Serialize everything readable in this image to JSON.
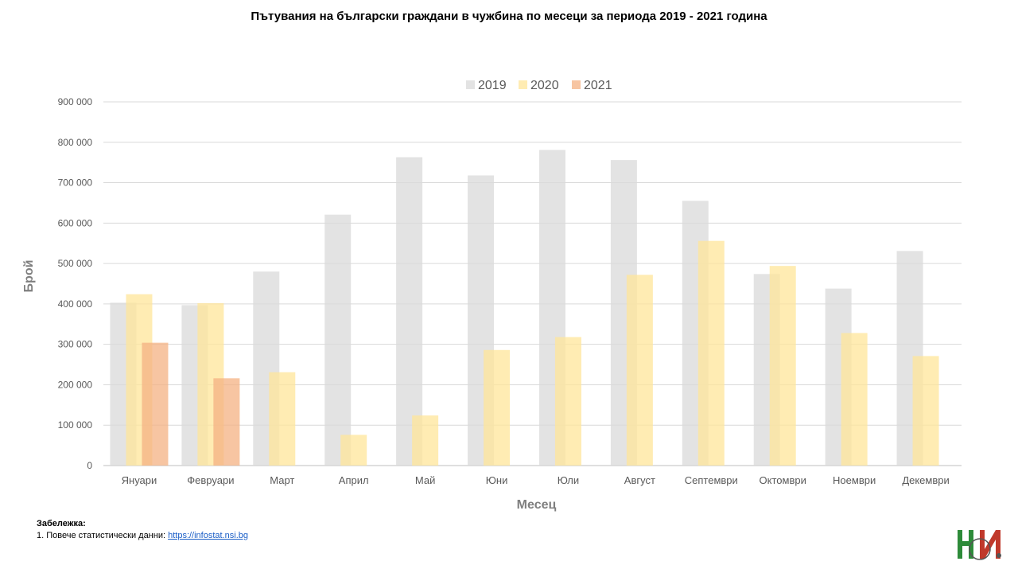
{
  "chart_data": {
    "type": "bar",
    "title": "Пътувания на български граждани в чужбина по месеци за периода 2019 - 2021 година",
    "xlabel": "Месец",
    "ylabel": "Брой",
    "ylim": [
      0,
      900000
    ],
    "yticks": [
      0,
      100000,
      200000,
      300000,
      400000,
      500000,
      600000,
      700000,
      800000,
      900000
    ],
    "ytick_labels": [
      "0",
      "100 000",
      "200 000",
      "300 000",
      "400 000",
      "500 000",
      "600 000",
      "700 000",
      "800 000",
      "900 000"
    ],
    "grid": true,
    "legend_position": "top-center",
    "categories": [
      "Януари",
      "Февруари",
      "Март",
      "Април",
      "Май",
      "Юни",
      "Юли",
      "Август",
      "Септември",
      "Октомври",
      "Ноември",
      "Декември"
    ],
    "series": [
      {
        "name": "2019",
        "color": "#d9d9d9",
        "values": [
          403000,
          397000,
          480000,
          621000,
          763000,
          718000,
          781000,
          756000,
          655000,
          474000,
          438000,
          531000
        ]
      },
      {
        "name": "2020",
        "color": "#ffe699",
        "values": [
          424000,
          402000,
          231000,
          76000,
          124000,
          286000,
          318000,
          472000,
          556000,
          494000,
          328000,
          271000
        ]
      },
      {
        "name": "2021",
        "color": "#f4b183",
        "values": [
          304000,
          216000,
          null,
          null,
          null,
          null,
          null,
          null,
          null,
          null,
          null,
          null
        ]
      }
    ]
  },
  "note": {
    "header": "Забележка:",
    "line_prefix": "1. Повече статистически данни: ",
    "link_text": "https://infostat.nsi.bg"
  },
  "logo": {
    "green": "#2e8b3a",
    "red": "#c0392b",
    "gray": "#555555"
  }
}
